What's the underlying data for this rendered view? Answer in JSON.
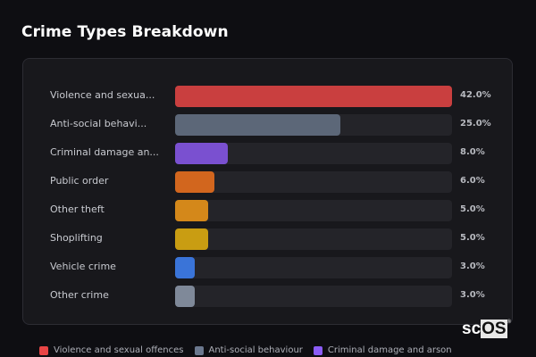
{
  "chart_data": {
    "type": "bar",
    "orientation": "horizontal",
    "title": "Crime Types Breakdown",
    "categories": [
      "Violence and sexua...",
      "Anti-social behavi...",
      "Criminal damage an...",
      "Public order",
      "Other theft",
      "Shoplifting",
      "Vehicle crime",
      "Other crime"
    ],
    "values": [
      42.0,
      25.0,
      8.0,
      6.0,
      5.0,
      5.0,
      3.0,
      3.0
    ],
    "value_labels": [
      "42.0%",
      "25.0%",
      "8.0%",
      "6.0%",
      "5.0%",
      "5.0%",
      "3.0%",
      "3.0%"
    ],
    "colors": [
      "#c93f3f",
      "#5c6778",
      "#7a50d0",
      "#d2661e",
      "#d4881a",
      "#c99d12",
      "#3a74d8",
      "#7f8999"
    ],
    "xlim": [
      0,
      42
    ],
    "legend": {
      "position": "bottom",
      "items": [
        {
          "label": "Violence and sexual offences",
          "color": "#e84545"
        },
        {
          "label": "Anti-social behaviour",
          "color": "#6b788e"
        },
        {
          "label": "Criminal damage and arson",
          "color": "#8b5cf6"
        }
      ]
    }
  },
  "logo": {
    "text_a": "sc",
    "text_b": "OS",
    "mark": "®"
  }
}
